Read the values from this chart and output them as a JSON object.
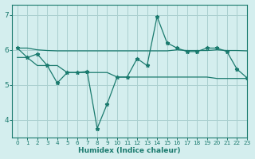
{
  "line_top_x": [
    0,
    1,
    2,
    3,
    4,
    5,
    6,
    7,
    8,
    9,
    10,
    11,
    12,
    13,
    14,
    15,
    16,
    17,
    18,
    19,
    20,
    21,
    22,
    23
  ],
  "line_top_y": [
    6.05,
    6.05,
    6.0,
    5.98,
    5.97,
    5.97,
    5.97,
    5.97,
    5.97,
    5.97,
    5.97,
    5.97,
    5.97,
    5.97,
    5.97,
    5.97,
    6.0,
    5.98,
    5.98,
    5.98,
    6.0,
    5.98,
    5.98,
    5.97
  ],
  "line_mid_x": [
    0,
    1,
    2,
    3,
    4,
    5,
    6,
    7,
    8,
    9,
    10,
    11,
    12,
    13,
    14,
    15,
    16,
    17,
    18,
    19,
    20,
    21,
    22,
    23
  ],
  "line_mid_y": [
    6.05,
    5.78,
    5.88,
    5.55,
    5.05,
    5.35,
    5.35,
    5.38,
    3.75,
    4.45,
    5.22,
    5.22,
    5.75,
    5.55,
    6.95,
    6.2,
    6.05,
    5.95,
    5.95,
    6.05,
    6.05,
    5.95,
    5.45,
    5.2
  ],
  "line_bot_x": [
    0,
    1,
    2,
    3,
    4,
    5,
    6,
    7,
    8,
    9,
    10,
    11,
    12,
    13,
    14,
    15,
    16,
    17,
    18,
    19,
    20,
    21,
    22,
    23
  ],
  "line_bot_y": [
    5.78,
    5.78,
    5.55,
    5.55,
    5.55,
    5.35,
    5.35,
    5.35,
    5.35,
    5.35,
    5.22,
    5.22,
    5.22,
    5.22,
    5.22,
    5.22,
    5.22,
    5.22,
    5.22,
    5.22,
    5.18,
    5.18,
    5.18,
    5.18
  ],
  "color": "#1a7a6e",
  "bg_color": "#d4eeee",
  "grid_color": "#aad0d0",
  "xlabel": "Humidex (Indice chaleur)",
  "xlim": [
    -0.5,
    23
  ],
  "ylim": [
    3.5,
    7.3
  ],
  "yticks": [
    4,
    5,
    6,
    7
  ],
  "xticks": [
    0,
    1,
    2,
    3,
    4,
    5,
    6,
    7,
    8,
    9,
    10,
    11,
    12,
    13,
    14,
    15,
    16,
    17,
    18,
    19,
    20,
    21,
    22,
    23
  ]
}
